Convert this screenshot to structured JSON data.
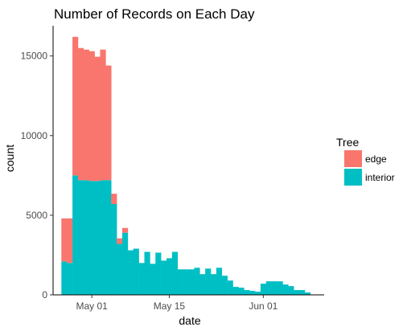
{
  "chart_data": {
    "type": "bar",
    "title": "Number of Records on Each Day",
    "xlabel": "date",
    "ylabel": "count",
    "stacked": true,
    "xlim": [
      "2016-04-24",
      "2016-06-12"
    ],
    "ylim": [
      0,
      16900
    ],
    "xticks": [
      {
        "date": "2016-05-01",
        "label": "May 01"
      },
      {
        "date": "2016-05-15",
        "label": "May 15"
      },
      {
        "date": "2016-06-01",
        "label": "Jun 01"
      }
    ],
    "yticks": [
      0,
      5000,
      10000,
      15000
    ],
    "grid": false,
    "legend": {
      "title": "Tree",
      "placement": "right"
    },
    "categories": [
      "2016-04-26",
      "2016-04-27",
      "2016-04-28",
      "2016-04-29",
      "2016-04-30",
      "2016-05-01",
      "2016-05-02",
      "2016-05-03",
      "2016-05-04",
      "2016-05-05",
      "2016-05-06",
      "2016-05-07",
      "2016-05-08",
      "2016-05-09",
      "2016-05-10",
      "2016-05-11",
      "2016-05-12",
      "2016-05-13",
      "2016-05-14",
      "2016-05-15",
      "2016-05-16",
      "2016-05-17",
      "2016-05-18",
      "2016-05-19",
      "2016-05-20",
      "2016-05-21",
      "2016-05-22",
      "2016-05-23",
      "2016-05-24",
      "2016-05-25",
      "2016-05-26",
      "2016-05-27",
      "2016-05-28",
      "2016-05-29",
      "2016-05-30",
      "2016-05-31",
      "2016-06-01",
      "2016-06-02",
      "2016-06-03",
      "2016-06-04",
      "2016-06-05",
      "2016-06-06",
      "2016-06-07",
      "2016-06-08",
      "2016-06-09"
    ],
    "series": [
      {
        "name": "interior",
        "color": "#00BFC4",
        "values": [
          2100,
          2000,
          7500,
          7200,
          7200,
          7150,
          7150,
          7200,
          7200,
          5700,
          3200,
          3900,
          2800,
          2900,
          2000,
          2700,
          1950,
          2650,
          2150,
          2300,
          2700,
          1600,
          1600,
          1600,
          1700,
          1300,
          1650,
          1300,
          1700,
          1200,
          900,
          500,
          450,
          300,
          250,
          200,
          700,
          850,
          850,
          850,
          650,
          550,
          300,
          300,
          150
        ]
      },
      {
        "name": "edge",
        "color": "#F8766D",
        "values": [
          2700,
          2800,
          8700,
          8300,
          8200,
          8150,
          7800,
          8200,
          7200,
          650,
          350,
          300,
          0,
          0,
          0,
          0,
          0,
          0,
          0,
          0,
          0,
          0,
          0,
          0,
          0,
          0,
          0,
          0,
          0,
          0,
          0,
          0,
          0,
          0,
          0,
          0,
          0,
          0,
          0,
          0,
          0,
          0,
          0,
          0,
          0
        ]
      }
    ]
  }
}
